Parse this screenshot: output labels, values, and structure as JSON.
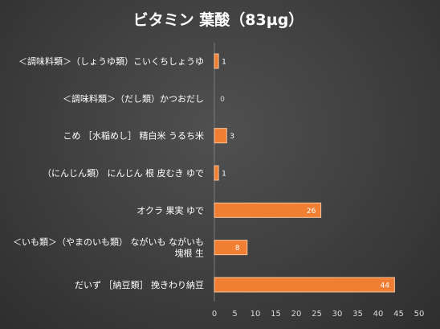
{
  "chart_data": {
    "type": "bar",
    "orientation": "horizontal",
    "title": "ビタミン 葉酸（83µg）",
    "categories": [
      [
        "＜調味料類＞（しょうゆ類）こいくちしょうゆ"
      ],
      [
        "＜調味料類＞（だし類）かつおだし"
      ],
      [
        "こめ ［水稲めし］ 精白米 うるち米"
      ],
      [
        "（にんじん類） にんじん 根 皮むき ゆで"
      ],
      [
        "オクラ 果実 ゆで"
      ],
      [
        "＜いも類＞（やまのいも類） ながいも ながいも",
        "塊根 生"
      ],
      [
        "だいず ［納豆類］ 挽きわり納豆"
      ]
    ],
    "values": [
      1,
      0,
      3,
      1,
      26,
      8,
      44
    ],
    "xlim": [
      0,
      50
    ],
    "xticks": [
      0,
      5,
      10,
      15,
      20,
      25,
      30,
      35,
      40,
      45,
      50
    ],
    "bar_color": "#f07f33",
    "bar_edge_color": "#f6c49d",
    "background_color": "#404040",
    "grid": false,
    "legend": "none"
  }
}
